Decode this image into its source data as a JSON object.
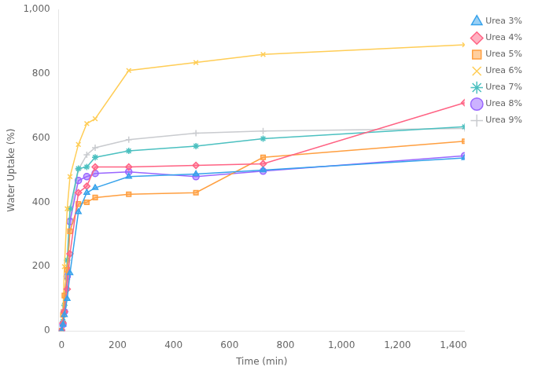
{
  "chart_data": {
    "type": "line",
    "xlabel": "Time (min)",
    "ylabel": "Water Uptake (%)",
    "xlim": [
      -10,
      1440
    ],
    "ylim": [
      0,
      1000
    ],
    "xticks": [
      0,
      200,
      400,
      600,
      800,
      1000,
      1200,
      1400
    ],
    "yticks": [
      0,
      200,
      400,
      600,
      800,
      1000
    ],
    "grid": false,
    "legend": "right",
    "x": [
      0,
      5,
      10,
      20,
      30,
      60,
      90,
      120,
      240,
      480,
      720,
      1440
    ],
    "series": [
      {
        "name": "Urea 3%",
        "marker": "triangle",
        "values": [
          0,
          20,
          50,
          100,
          180,
          370,
          430,
          445,
          480,
          488,
          500,
          538
        ]
      },
      {
        "name": "Urea 4%",
        "marker": "diamond",
        "values": [
          0,
          25,
          60,
          130,
          240,
          430,
          450,
          510,
          510,
          515,
          520,
          710
        ]
      },
      {
        "name": "Urea 5%",
        "marker": "square",
        "values": [
          0,
          50,
          110,
          190,
          310,
          395,
          400,
          415,
          425,
          430,
          540,
          590
        ]
      },
      {
        "name": "Urea 6%",
        "marker": "x",
        "values": [
          0,
          60,
          200,
          380,
          480,
          580,
          645,
          660,
          810,
          835,
          860,
          890
        ]
      },
      {
        "name": "Urea 7%",
        "marker": "star",
        "values": [
          0,
          30,
          80,
          220,
          380,
          505,
          510,
          540,
          560,
          575,
          598,
          635
        ]
      },
      {
        "name": "Urea 8%",
        "marker": "circle",
        "values": [
          0,
          20,
          60,
          170,
          340,
          468,
          480,
          490,
          495,
          480,
          497,
          545
        ]
      },
      {
        "name": "Urea 9%",
        "marker": "plus",
        "values": [
          0,
          25,
          60,
          160,
          350,
          502,
          548,
          570,
          595,
          615,
          622,
          630
        ]
      }
    ]
  }
}
